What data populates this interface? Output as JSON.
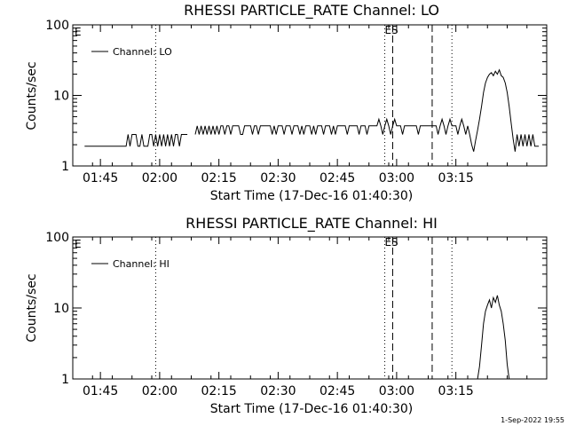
{
  "footer": {
    "timestamp": "1-Sep-2022 19:55"
  },
  "chart_data": [
    {
      "type": "line",
      "title": "RHESSI PARTICLE_RATE Channel: LO",
      "xlabel": "Start Time (17-Dec-16 01:40:30)",
      "ylabel": "Counts/sec",
      "yscale": "log",
      "ylim": [
        1,
        100
      ],
      "xlim_minutes": [
        98,
        218
      ],
      "x_ticks": [
        "01:45",
        "02:00",
        "02:15",
        "02:30",
        "02:45",
        "03:00",
        "03:15"
      ],
      "y_ticks": [
        "1",
        "10",
        "100"
      ],
      "legend": {
        "position": "top-left",
        "entries": [
          "Channel: LO"
        ]
      },
      "markers": [
        {
          "type": "dotted",
          "x": "01:59"
        },
        {
          "type": "dotted",
          "x": "02:57"
        },
        {
          "type": "dashed",
          "x": "02:59",
          "label": "S"
        },
        {
          "type": "dashed",
          "x": "03:09"
        },
        {
          "type": "dotted",
          "x": "03:14"
        }
      ],
      "corner_label": "E",
      "marker_label_prefix": "E",
      "series": [
        {
          "name": "Channel: LO",
          "color": "#000000",
          "segments": [
            [
              [
                101,
                1.9
              ],
              [
                102,
                1.9
              ],
              [
                103,
                1.9
              ],
              [
                104,
                1.9
              ],
              [
                105,
                1.9
              ],
              [
                106,
                1.9
              ],
              [
                107,
                1.9
              ],
              [
                108,
                1.9
              ],
              [
                109,
                1.9
              ],
              [
                110,
                1.9
              ],
              [
                111,
                1.9
              ],
              [
                111.5,
                1.9
              ],
              [
                112,
                2.8
              ],
              [
                112.5,
                1.9
              ],
              [
                113,
                2.8
              ],
              [
                113.5,
                2.8
              ],
              [
                114,
                2.8
              ],
              [
                114.5,
                1.9
              ],
              [
                115,
                1.9
              ],
              [
                115.5,
                2.8
              ],
              [
                116,
                1.9
              ],
              [
                116.5,
                1.9
              ],
              [
                117,
                1.9
              ],
              [
                117.5,
                2.8
              ],
              [
                118,
                2.8
              ],
              [
                118.5,
                1.9
              ],
              [
                119,
                2.8
              ],
              [
                119.5,
                1.9
              ],
              [
                120,
                2.8
              ],
              [
                120.5,
                1.9
              ],
              [
                121,
                2.8
              ],
              [
                121.5,
                1.9
              ],
              [
                122,
                2.8
              ],
              [
                122.5,
                1.9
              ],
              [
                123,
                2.8
              ],
              [
                123.5,
                1.9
              ],
              [
                124,
                2.8
              ],
              [
                124.5,
                2.8
              ],
              [
                125,
                1.9
              ],
              [
                125.5,
                2.8
              ],
              [
                126,
                2.8
              ],
              [
                127,
                2.8
              ]
            ],
            [
              [
                129,
                2.8
              ],
              [
                129.5,
                3.7
              ],
              [
                130,
                2.8
              ],
              [
                130.5,
                3.7
              ],
              [
                131,
                2.8
              ],
              [
                131.5,
                3.7
              ],
              [
                132,
                2.8
              ],
              [
                132.5,
                3.7
              ],
              [
                133,
                2.8
              ],
              [
                133.5,
                3.7
              ],
              [
                134,
                2.8
              ],
              [
                134.5,
                3.7
              ],
              [
                135,
                2.8
              ],
              [
                135.5,
                3.7
              ],
              [
                136,
                3.7
              ],
              [
                136.5,
                2.8
              ],
              [
                137,
                3.7
              ],
              [
                137.5,
                3.7
              ],
              [
                138,
                2.8
              ],
              [
                138.5,
                3.7
              ],
              [
                139,
                3.7
              ],
              [
                140,
                3.7
              ],
              [
                140.5,
                2.8
              ],
              [
                141,
                2.8
              ],
              [
                141.5,
                3.7
              ],
              [
                142,
                3.7
              ],
              [
                143,
                3.7
              ],
              [
                143.5,
                2.8
              ],
              [
                144,
                3.7
              ],
              [
                144.5,
                3.7
              ],
              [
                145,
                2.8
              ],
              [
                145.5,
                3.7
              ],
              [
                146,
                3.7
              ],
              [
                147,
                3.7
              ],
              [
                148,
                3.7
              ],
              [
                148.5,
                2.8
              ],
              [
                149,
                3.7
              ],
              [
                149.5,
                2.8
              ],
              [
                150,
                3.7
              ],
              [
                151,
                3.7
              ],
              [
                151.5,
                2.8
              ],
              [
                152,
                3.7
              ],
              [
                153,
                3.7
              ],
              [
                153.5,
                2.8
              ],
              [
                154,
                3.7
              ],
              [
                155,
                3.7
              ],
              [
                155.5,
                2.8
              ],
              [
                156,
                3.7
              ],
              [
                156.5,
                2.8
              ],
              [
                157,
                3.7
              ],
              [
                158,
                3.7
              ],
              [
                158.5,
                2.8
              ],
              [
                159,
                3.7
              ],
              [
                159.5,
                2.8
              ],
              [
                160,
                3.7
              ],
              [
                161,
                3.7
              ],
              [
                161.5,
                2.8
              ],
              [
                162,
                3.7
              ],
              [
                163,
                3.7
              ],
              [
                163.5,
                2.8
              ],
              [
                164,
                3.7
              ],
              [
                164.5,
                2.8
              ],
              [
                165,
                3.7
              ],
              [
                166,
                3.7
              ],
              [
                167,
                3.7
              ],
              [
                167.5,
                2.8
              ],
              [
                168,
                3.7
              ],
              [
                169,
                3.7
              ],
              [
                170,
                3.7
              ],
              [
                170.5,
                2.8
              ],
              [
                171,
                3.7
              ],
              [
                172,
                3.7
              ],
              [
                172.5,
                2.8
              ],
              [
                173,
                3.7
              ],
              [
                174,
                3.7
              ],
              [
                175,
                3.7
              ],
              [
                175.5,
                4.6
              ],
              [
                176,
                3.7
              ],
              [
                176.5,
                2.8
              ],
              [
                177,
                3.7
              ],
              [
                177.5,
                4.6
              ],
              [
                178,
                3.7
              ],
              [
                178.5,
                2.8
              ],
              [
                179,
                3.7
              ],
              [
                179.5,
                4.6
              ],
              [
                180,
                3.7
              ],
              [
                181,
                3.7
              ],
              [
                181.5,
                2.8
              ],
              [
                182,
                3.7
              ],
              [
                183,
                3.7
              ],
              [
                184,
                3.7
              ],
              [
                185,
                3.7
              ],
              [
                185.5,
                2.8
              ],
              [
                186,
                3.7
              ],
              [
                187,
                3.7
              ],
              [
                188,
                3.7
              ],
              [
                189,
                3.7
              ],
              [
                190,
                3.7
              ],
              [
                190.5,
                2.8
              ],
              [
                191,
                3.7
              ],
              [
                191.5,
                4.6
              ],
              [
                192,
                3.7
              ],
              [
                192.5,
                2.8
              ],
              [
                193,
                3.7
              ],
              [
                193.5,
                4.6
              ],
              [
                194,
                3.7
              ],
              [
                195,
                3.7
              ],
              [
                195.5,
                2.8
              ],
              [
                196,
                3.7
              ],
              [
                196.5,
                4.6
              ],
              [
                197,
                3.7
              ],
              [
                197.5,
                2.8
              ],
              [
                198,
                3.7
              ],
              [
                198.5,
                2.8
              ],
              [
                199,
                2.0
              ],
              [
                199.5,
                1.6
              ],
              [
                200,
                2.3
              ],
              [
                200.5,
                3.2
              ],
              [
                201,
                4.6
              ],
              [
                201.5,
                7
              ],
              [
                202,
                11
              ],
              [
                202.5,
                15
              ],
              [
                203,
                18
              ],
              [
                203.5,
                20
              ],
              [
                204,
                21
              ],
              [
                204.5,
                19
              ],
              [
                205,
                22
              ],
              [
                205.5,
                20
              ],
              [
                206,
                23
              ],
              [
                206.5,
                19
              ],
              [
                207,
                18
              ],
              [
                207.5,
                15
              ],
              [
                208,
                11
              ],
              [
                208.5,
                7
              ],
              [
                209,
                4
              ],
              [
                209.5,
                2.4
              ],
              [
                210,
                1.6
              ],
              [
                210.5,
                2.8
              ],
              [
                211,
                1.9
              ],
              [
                211.5,
                2.8
              ],
              [
                212,
                1.9
              ],
              [
                212.5,
                2.8
              ],
              [
                213,
                1.9
              ],
              [
                213.5,
                2.8
              ],
              [
                214,
                1.9
              ],
              [
                214.5,
                2.8
              ],
              [
                215,
                1.9
              ],
              [
                216,
                1.9
              ]
            ]
          ]
        }
      ]
    },
    {
      "type": "line",
      "title": "RHESSI PARTICLE_RATE Channel: HI",
      "xlabel": "Start Time (17-Dec-16 01:40:30)",
      "ylabel": "Counts/sec",
      "yscale": "log",
      "ylim": [
        1,
        100
      ],
      "xlim_minutes": [
        98,
        218
      ],
      "x_ticks": [
        "01:45",
        "02:00",
        "02:15",
        "02:30",
        "02:45",
        "03:00",
        "03:15"
      ],
      "y_ticks": [
        "1",
        "10",
        "100"
      ],
      "legend": {
        "position": "top-left",
        "entries": [
          "Channel: HI"
        ]
      },
      "markers": [
        {
          "type": "dotted",
          "x": "01:59"
        },
        {
          "type": "dotted",
          "x": "02:57"
        },
        {
          "type": "dashed",
          "x": "02:59",
          "label": "S"
        },
        {
          "type": "dashed",
          "x": "03:09"
        },
        {
          "type": "dotted",
          "x": "03:14"
        }
      ],
      "corner_label": "E",
      "marker_label_prefix": "E",
      "series": [
        {
          "name": "Channel: HI",
          "color": "#000000",
          "segments": [
            [
              [
                200.5,
                0.9
              ],
              [
                201,
                1.5
              ],
              [
                201.5,
                3
              ],
              [
                202,
                6
              ],
              [
                202.5,
                9
              ],
              [
                203,
                11
              ],
              [
                203.5,
                13
              ],
              [
                204,
                10
              ],
              [
                204.5,
                14
              ],
              [
                205,
                12
              ],
              [
                205.5,
                15
              ],
              [
                206,
                11
              ],
              [
                206.5,
                9
              ],
              [
                207,
                6
              ],
              [
                207.5,
                3.5
              ],
              [
                208,
                1.6
              ],
              [
                208.5,
                0.9
              ]
            ]
          ]
        }
      ]
    }
  ]
}
